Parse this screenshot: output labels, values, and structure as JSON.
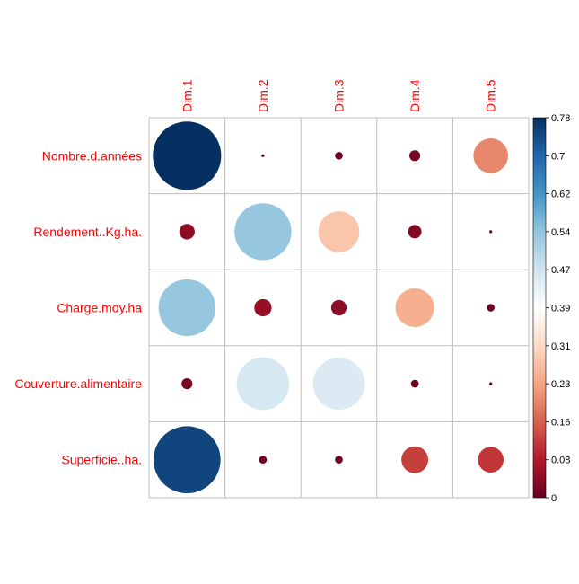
{
  "chart_data": {
    "type": "heatmap",
    "title": "",
    "columns": [
      "Dim.1",
      "Dim.2",
      "Dim.3",
      "Dim.4",
      "Dim.5"
    ],
    "rows": [
      "Nombre.d.années",
      "Rendement..Kg.ha.",
      "Charge.moy.ha",
      "Couverture.alimentaire",
      "Superficie..ha."
    ],
    "values": [
      [
        0.78,
        0.0,
        0.01,
        0.02,
        0.2
      ],
      [
        0.04,
        0.54,
        0.28,
        0.03,
        0.0
      ],
      [
        0.54,
        0.05,
        0.04,
        0.25,
        0.01
      ],
      [
        0.02,
        0.46,
        0.45,
        0.01,
        0.0
      ],
      [
        0.75,
        0.01,
        0.01,
        0.12,
        0.11
      ]
    ],
    "marker": "circle",
    "grid": true,
    "legend_position": "right",
    "colorbar": {
      "range": [
        0,
        0.78
      ],
      "tick_labels": [
        "0.78",
        "0.7",
        "0.62",
        "0.54",
        "0.47",
        "0.39",
        "0.31",
        "0.23",
        "0.16",
        "0.08",
        "0"
      ],
      "colors": [
        "#67001F",
        "#B2182B",
        "#D6604D",
        "#F4A582",
        "#FDDBC7",
        "#FFFFFF",
        "#D1E5F0",
        "#92C5DE",
        "#4393C3",
        "#2166AC",
        "#053061"
      ]
    },
    "label_color": "#FF0000"
  }
}
